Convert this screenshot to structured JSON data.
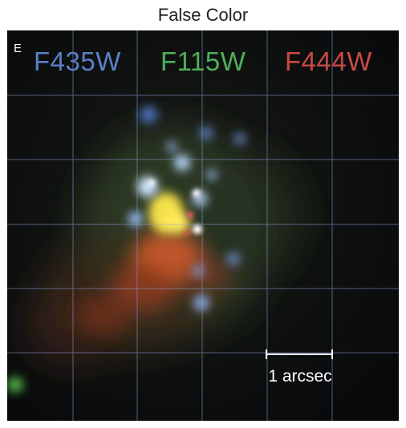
{
  "figure": {
    "title": "False Color",
    "corner_label": "E",
    "filters": [
      {
        "label": "F435W",
        "color": "#5b7fc8"
      },
      {
        "label": "F115W",
        "color": "#4fb05a"
      },
      {
        "label": "F444W",
        "color": "#c94a45"
      }
    ],
    "scale_bar_label": "1 arcsec",
    "grid_color": "#8fa3d6"
  }
}
